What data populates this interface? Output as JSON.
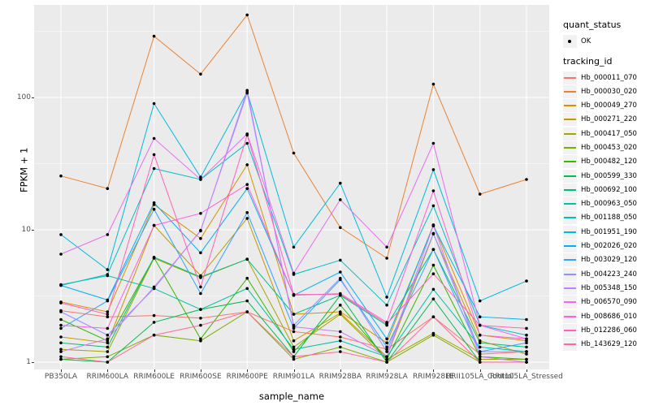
{
  "figure": {
    "panel_bg": "#EBEBEB",
    "grid_color": "#FFFFFF",
    "axis_text_color": "#4D4D4D",
    "legend_key_bg": "#F2F2F2"
  },
  "legend": {
    "quant_status_title": "quant_status",
    "quant_status_items": [
      {
        "label": "OK",
        "symbol": "black-point"
      }
    ],
    "tracking_title": "tracking_id"
  },
  "chart_data": {
    "type": "line",
    "title": "",
    "xlabel": "sample_name",
    "ylabel": "FPKM + 1",
    "y_scale": "log10",
    "ylim": [
      1,
      500
    ],
    "y_ticks": [
      1,
      10,
      100
    ],
    "grid": true,
    "legend_position": "right",
    "point_color": "#000000",
    "categories": [
      "PB350LA",
      "RRIM600LA",
      "RRIM600LE",
      "RRIM600SE",
      "RRIM600PE",
      "RRIM901LA",
      "RRIM928BA",
      "RRIM928LA",
      "RRIM928LE",
      "RRII105LA_Control",
      "RRII105LA_Stressed"
    ],
    "series": [
      {
        "name": "Hb_000011_070",
        "color": "#F8766D",
        "values": [
          2.45,
          2.2,
          2.25,
          2.15,
          2.4,
          1.7,
          1.55,
          1.25,
          2.2,
          1.15,
          1.2
        ]
      },
      {
        "name": "Hb_000030_020",
        "color": "#EA8331",
        "values": [
          25.5,
          20.5,
          290,
          150,
          420,
          38,
          10.4,
          6.1,
          126,
          18.6,
          24
        ]
      },
      {
        "name": "Hb_000049_270",
        "color": "#D89000",
        "values": [
          2.85,
          2.4,
          15.5,
          8.6,
          31,
          2.3,
          2.4,
          1.4,
          10.9,
          1.6,
          1.45
        ]
      },
      {
        "name": "Hb_000271_220",
        "color": "#C09B00",
        "values": [
          1.55,
          1.4,
          10.8,
          4.5,
          12.2,
          1.45,
          2.35,
          1.1,
          9.3,
          1.45,
          1.15
        ]
      },
      {
        "name": "Hb_000417_050",
        "color": "#A3A500",
        "values": [
          1.25,
          1.2,
          6.1,
          4.35,
          6.0,
          1.3,
          2.3,
          1.05,
          1.65,
          1.05,
          1.05
        ]
      },
      {
        "name": "Hb_000453_020",
        "color": "#7CAE00",
        "values": [
          1.05,
          1.1,
          1.6,
          1.45,
          2.4,
          1.05,
          1.3,
          1.0,
          1.6,
          1.0,
          1.0
        ]
      },
      {
        "name": "Hb_000482_120",
        "color": "#39B600",
        "values": [
          2.1,
          1.45,
          6.15,
          1.5,
          4.3,
          1.2,
          2.7,
          1.05,
          5.4,
          1.1,
          1.05
        ]
      },
      {
        "name": "Hb_000599_330",
        "color": "#00BB4E",
        "values": [
          1.05,
          1.0,
          2.0,
          2.5,
          2.9,
          1.1,
          3.2,
          1.0,
          3.0,
          1.0,
          1.0
        ]
      },
      {
        "name": "Hb_000692_100",
        "color": "#00BF7D",
        "values": [
          1.4,
          1.3,
          6.2,
          4.4,
          6.0,
          2.3,
          3.2,
          1.9,
          7.1,
          1.4,
          1.3
        ]
      },
      {
        "name": "Hb_000963_050",
        "color": "#00C1A3",
        "values": [
          3.85,
          4.5,
          3.6,
          2.5,
          3.6,
          1.25,
          1.45,
          1.1,
          3.55,
          1.3,
          1.2
        ]
      },
      {
        "name": "Hb_001188_050",
        "color": "#00BFC4",
        "values": [
          3.8,
          4.6,
          29,
          24,
          45,
          4.6,
          5.9,
          2.7,
          15.2,
          1.9,
          1.6
        ]
      },
      {
        "name": "Hb_001951_190",
        "color": "#00BAE0",
        "values": [
          9.2,
          5.0,
          90,
          25,
          110,
          7.4,
          22.5,
          3.1,
          28.5,
          2.9,
          4.1
        ]
      },
      {
        "name": "Hb_002026_020",
        "color": "#00B0F6",
        "values": [
          3.8,
          2.95,
          16,
          6.7,
          20.5,
          3.2,
          4.8,
          1.5,
          10.7,
          2.2,
          2.1
        ]
      },
      {
        "name": "Hb_003029_120",
        "color": "#35A2FF",
        "values": [
          1.8,
          2.9,
          14.3,
          3.3,
          13.5,
          1.8,
          4.2,
          1.3,
          7.1,
          1.2,
          1.4
        ]
      },
      {
        "name": "Hb_004223_240",
        "color": "#9590FF",
        "values": [
          2.4,
          1.6,
          3.6,
          9.9,
          108,
          1.9,
          4.3,
          1.2,
          9.4,
          1.2,
          1.2
        ]
      },
      {
        "name": "Hb_005348_150",
        "color": "#C77CFF",
        "values": [
          1.2,
          1.5,
          3.7,
          9.8,
          113,
          1.85,
          1.7,
          1.1,
          10.8,
          1.1,
          1.0
        ]
      },
      {
        "name": "Hb_006570_090",
        "color": "#E76BF3",
        "values": [
          6.55,
          9.2,
          49,
          24,
          53,
          4.7,
          16.9,
          7.4,
          45,
          1.9,
          1.5
        ]
      },
      {
        "name": "Hb_008686_010",
        "color": "#FA62DB",
        "values": [
          1.9,
          1.8,
          10.8,
          13.3,
          22,
          3.2,
          3.3,
          2.0,
          19.7,
          1.6,
          1.5
        ]
      },
      {
        "name": "Hb_012286_060",
        "color": "#FF62BC",
        "values": [
          2.8,
          2.3,
          37,
          3.7,
          52,
          3.25,
          3.25,
          1.95,
          4.65,
          1.9,
          1.8
        ]
      },
      {
        "name": "Hb_143629_120",
        "color": "#FF6A98",
        "values": [
          1.1,
          1.0,
          1.6,
          1.9,
          2.4,
          1.1,
          1.2,
          1.0,
          2.2,
          1.0,
          1.0
        ]
      }
    ]
  }
}
